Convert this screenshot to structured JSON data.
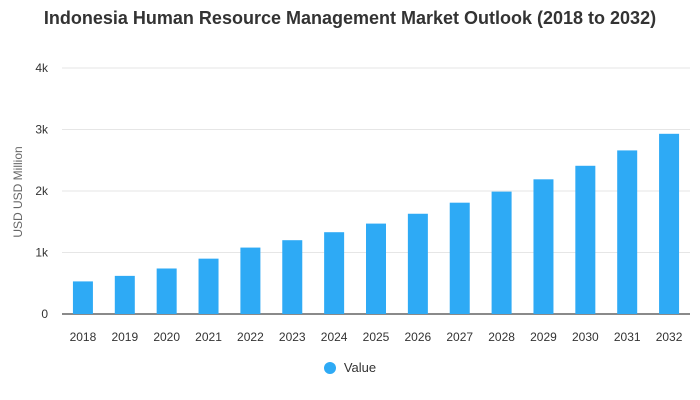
{
  "chart_data": {
    "type": "bar",
    "title": "Indonesia Human Resource Management Market Outlook (2018 to 2032)",
    "xlabel": "",
    "ylabel": "USD USD Million",
    "categories": [
      "2018",
      "2019",
      "2020",
      "2021",
      "2022",
      "2023",
      "2024",
      "2025",
      "2026",
      "2027",
      "2028",
      "2029",
      "2030",
      "2031",
      "2032"
    ],
    "series": [
      {
        "name": "Value",
        "values": [
          530,
          620,
          740,
          900,
          1080,
          1200,
          1330,
          1470,
          1630,
          1810,
          1990,
          2190,
          2410,
          2660,
          2930
        ],
        "color": "#2eaaf5"
      }
    ],
    "ylim": [
      0,
      4000
    ],
    "yticks": [
      0,
      1000,
      2000,
      3000,
      4000
    ],
    "ytick_labels": [
      "0",
      "1k",
      "2k",
      "3k",
      "4k"
    ],
    "grid": true,
    "legend_position": "bottom"
  }
}
